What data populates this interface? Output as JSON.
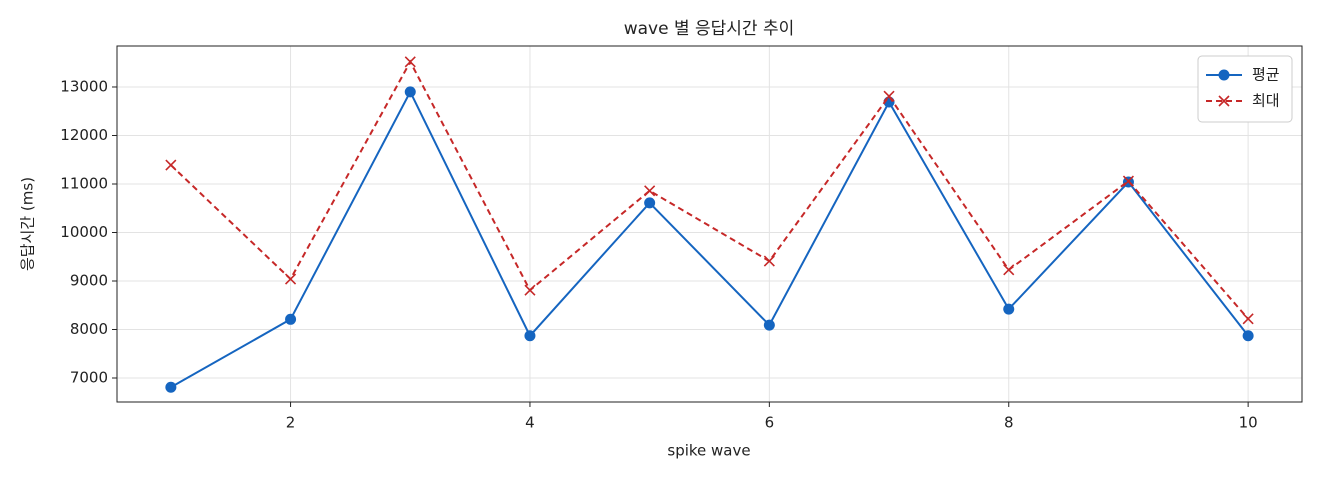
{
  "chart_data": {
    "type": "line",
    "title": "wave 별 응답시간 추이",
    "xlabel": "spike wave",
    "ylabel": "응답시간 (ms)",
    "x": [
      1,
      2,
      3,
      4,
      5,
      6,
      7,
      8,
      9,
      10
    ],
    "series": [
      {
        "name": "평균",
        "color": "#1565c0",
        "marker": "o",
        "dash": false,
        "values": [
          6810,
          8210,
          12900,
          7870,
          10610,
          8090,
          12690,
          8420,
          11040,
          7870
        ]
      },
      {
        "name": "최대",
        "color": "#c62828",
        "marker": "x",
        "dash": true,
        "values": [
          11390,
          9040,
          13520,
          8810,
          10860,
          9410,
          12810,
          9230,
          11060,
          8220
        ]
      }
    ],
    "xlim": [
      0.55,
      10.45
    ],
    "xticks": [
      2,
      4,
      6,
      8,
      10
    ],
    "ylim": [
      6505,
      13845
    ],
    "yticks": [
      7000,
      8000,
      9000,
      10000,
      11000,
      12000,
      13000
    ],
    "grid": true,
    "legend": "upper right"
  }
}
